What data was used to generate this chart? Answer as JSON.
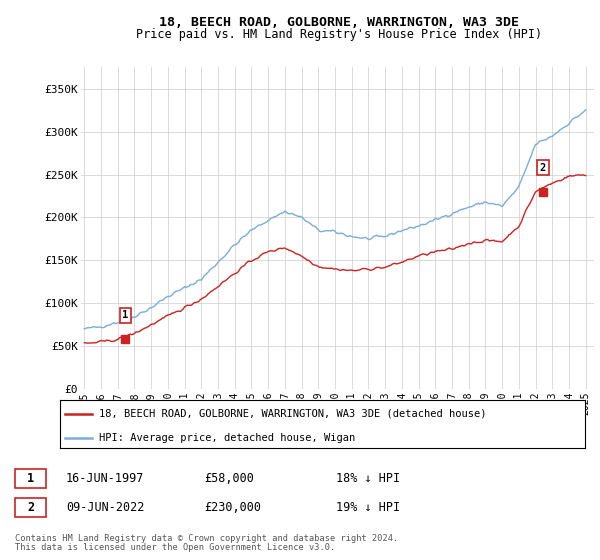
{
  "title_line1": "18, BEECH ROAD, GOLBORNE, WARRINGTON, WA3 3DE",
  "title_line2": "Price paid vs. HM Land Registry's House Price Index (HPI)",
  "ylabel_ticks": [
    "£0",
    "£50K",
    "£100K",
    "£150K",
    "£200K",
    "£250K",
    "£300K",
    "£350K"
  ],
  "ytick_vals": [
    0,
    50000,
    100000,
    150000,
    200000,
    250000,
    300000,
    350000
  ],
  "ylim": [
    0,
    375000
  ],
  "xlim_start": 1994.8,
  "xlim_end": 2025.5,
  "hpi_color": "#7aaddb",
  "price_color": "#cc2222",
  "legend_label1": "18, BEECH ROAD, GOLBORNE, WARRINGTON, WA3 3DE (detached house)",
  "legend_label2": "HPI: Average price, detached house, Wigan",
  "sale1_label": "1",
  "sale1_date": "16-JUN-1997",
  "sale1_price": "£58,000",
  "sale1_hpi": "18% ↓ HPI",
  "sale1_year": 1997.45,
  "sale1_value": 58000,
  "sale2_label": "2",
  "sale2_date": "09-JUN-2022",
  "sale2_price": "£230,000",
  "sale2_hpi": "19% ↓ HPI",
  "sale2_year": 2022.44,
  "sale2_value": 230000,
  "footnote1": "Contains HM Land Registry data © Crown copyright and database right 2024.",
  "footnote2": "This data is licensed under the Open Government Licence v3.0.",
  "xtick_years": [
    "1995",
    "1996",
    "1997",
    "1998",
    "1999",
    "2000",
    "2001",
    "2002",
    "2003",
    "2004",
    "2005",
    "2006",
    "2007",
    "2008",
    "2009",
    "2010",
    "2011",
    "2012",
    "2013",
    "2014",
    "2015",
    "2016",
    "2017",
    "2018",
    "2019",
    "2020",
    "2021",
    "2022",
    "2023",
    "2024",
    "2025"
  ],
  "hpi_anchors_x": [
    1995,
    1996,
    1997,
    1998,
    1999,
    2000,
    2001,
    2002,
    2003,
    2004,
    2005,
    2006,
    2007,
    2008,
    2009,
    2010,
    2011,
    2012,
    2013,
    2014,
    2015,
    2016,
    2017,
    2018,
    2019,
    2020,
    2021,
    2022,
    2023,
    2024,
    2025
  ],
  "hpi_anchors_y": [
    70000,
    73000,
    78000,
    85000,
    95000,
    108000,
    118000,
    128000,
    148000,
    168000,
    185000,
    197000,
    207000,
    200000,
    185000,
    183000,
    178000,
    175000,
    178000,
    185000,
    190000,
    197000,
    205000,
    212000,
    218000,
    213000,
    235000,
    285000,
    295000,
    310000,
    325000
  ],
  "price_anchors_x": [
    1995,
    1996,
    1997,
    1998,
    1999,
    2000,
    2001,
    2002,
    2003,
    2004,
    2005,
    2006,
    2007,
    2008,
    2009,
    2010,
    2011,
    2012,
    2013,
    2014,
    2015,
    2016,
    2017,
    2018,
    2019,
    2020,
    2021,
    2022,
    2023,
    2024,
    2025
  ],
  "price_anchors_y": [
    53000,
    55000,
    58000,
    65000,
    75000,
    85000,
    95000,
    105000,
    120000,
    135000,
    150000,
    160000,
    165000,
    155000,
    143000,
    140000,
    138000,
    140000,
    142000,
    148000,
    155000,
    160000,
    163000,
    170000,
    173000,
    172000,
    190000,
    230000,
    240000,
    248000,
    250000
  ]
}
